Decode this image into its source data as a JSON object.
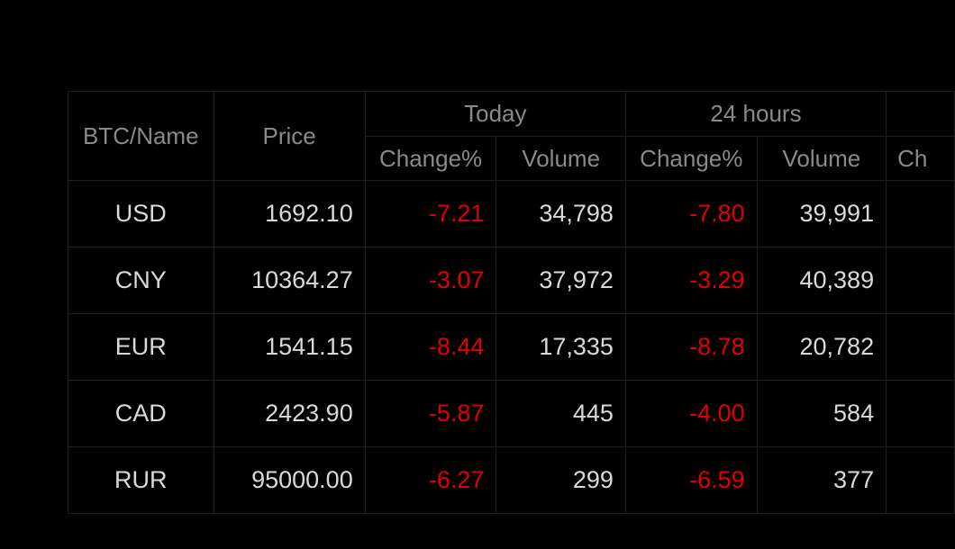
{
  "table": {
    "headers": {
      "name": "BTC/Name",
      "price": "Price",
      "today": "Today",
      "hours24": "24 hours",
      "change": "Change%",
      "volume": "Volume",
      "cut_change": "Ch"
    },
    "rows": [
      {
        "name": "USD",
        "price": "1692.10",
        "today_change": "-7.21",
        "today_volume": "34,798",
        "h24_change": "-7.80",
        "h24_volume": "39,991"
      },
      {
        "name": "CNY",
        "price": "10364.27",
        "today_change": "-3.07",
        "today_volume": "37,972",
        "h24_change": "-3.29",
        "h24_volume": "40,389"
      },
      {
        "name": "EUR",
        "price": "1541.15",
        "today_change": "-8.44",
        "today_volume": "17,335",
        "h24_change": "-8.78",
        "h24_volume": "20,782"
      },
      {
        "name": "CAD",
        "price": "2423.90",
        "today_change": "-5.87",
        "today_volume": "445",
        "h24_change": "-4.00",
        "h24_volume": "584"
      },
      {
        "name": "RUR",
        "price": "95000.00",
        "today_change": "-6.27",
        "today_volume": "299",
        "h24_change": "-6.59",
        "h24_volume": "377"
      }
    ]
  },
  "colors": {
    "background": "#000000",
    "text": "#d9d9d9",
    "header_text": "#8a8a8a",
    "negative": "#e00000",
    "border": "#1e1e1e"
  }
}
